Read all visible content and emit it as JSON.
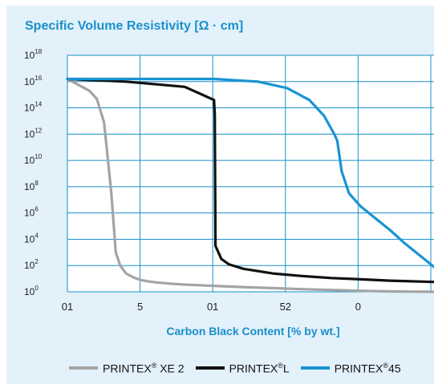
{
  "chart_data": {
    "type": "line",
    "title": "Specific Volume Resistivity [Ω · cm]",
    "xlabel": "Carbon Black Content [% by wt.]",
    "x_tick_labels": [
      "01",
      "5",
      "01",
      "52",
      "0"
    ],
    "y_tick_exponents": [
      0,
      2,
      4,
      6,
      8,
      10,
      12,
      14,
      16,
      18
    ],
    "y_scale": "log",
    "ylim_exponent": [
      0,
      18
    ],
    "xlim": [
      0,
      25
    ],
    "grid": true,
    "legend": "bottom",
    "series": [
      {
        "name_base": "PRINTEX",
        "name_mark": "®",
        "name_rest": " XE 2",
        "color": "#a4a4a4",
        "x": [
          0,
          1.5,
          2,
          2.5,
          3,
          3.3,
          3.6,
          4,
          4.5,
          5,
          5.5,
          6,
          7,
          8,
          10,
          12,
          14,
          16,
          18,
          20,
          22,
          25
        ],
        "log10_y": [
          16.2,
          15.3,
          14.7,
          12.9,
          7.5,
          3,
          2,
          1.4,
          1.1,
          0.9,
          0.8,
          0.72,
          0.62,
          0.55,
          0.45,
          0.36,
          0.28,
          0.2,
          0.14,
          0.08,
          0.03,
          0
        ]
      },
      {
        "name_base": "PRINTEX",
        "name_mark": "®",
        "name_rest": "L",
        "color": "#111111",
        "x": [
          0,
          4,
          8,
          10,
          10.05,
          10.1,
          10.5,
          11,
          12,
          14,
          16,
          18,
          20,
          22,
          25
        ],
        "log10_y": [
          16.2,
          16,
          15.6,
          14.6,
          13.5,
          3.5,
          2.5,
          2.1,
          1.75,
          1.4,
          1.2,
          1.05,
          0.95,
          0.85,
          0.75
        ]
      },
      {
        "name_base": "PRINTEX",
        "name_mark": "®",
        "name_rest": "45",
        "color": "#1a93d3",
        "x": [
          0,
          5,
          10,
          13,
          15,
          16.5,
          17.5,
          18.2,
          18.4,
          18.7,
          19.2,
          20,
          21,
          22,
          23,
          24,
          25
        ],
        "log10_y": [
          16.2,
          16.2,
          16.2,
          16,
          15.5,
          14.6,
          13.4,
          12,
          11.5,
          9.2,
          7.5,
          6.5,
          5.6,
          4.7,
          3.7,
          2.8,
          1.9
        ]
      }
    ]
  }
}
